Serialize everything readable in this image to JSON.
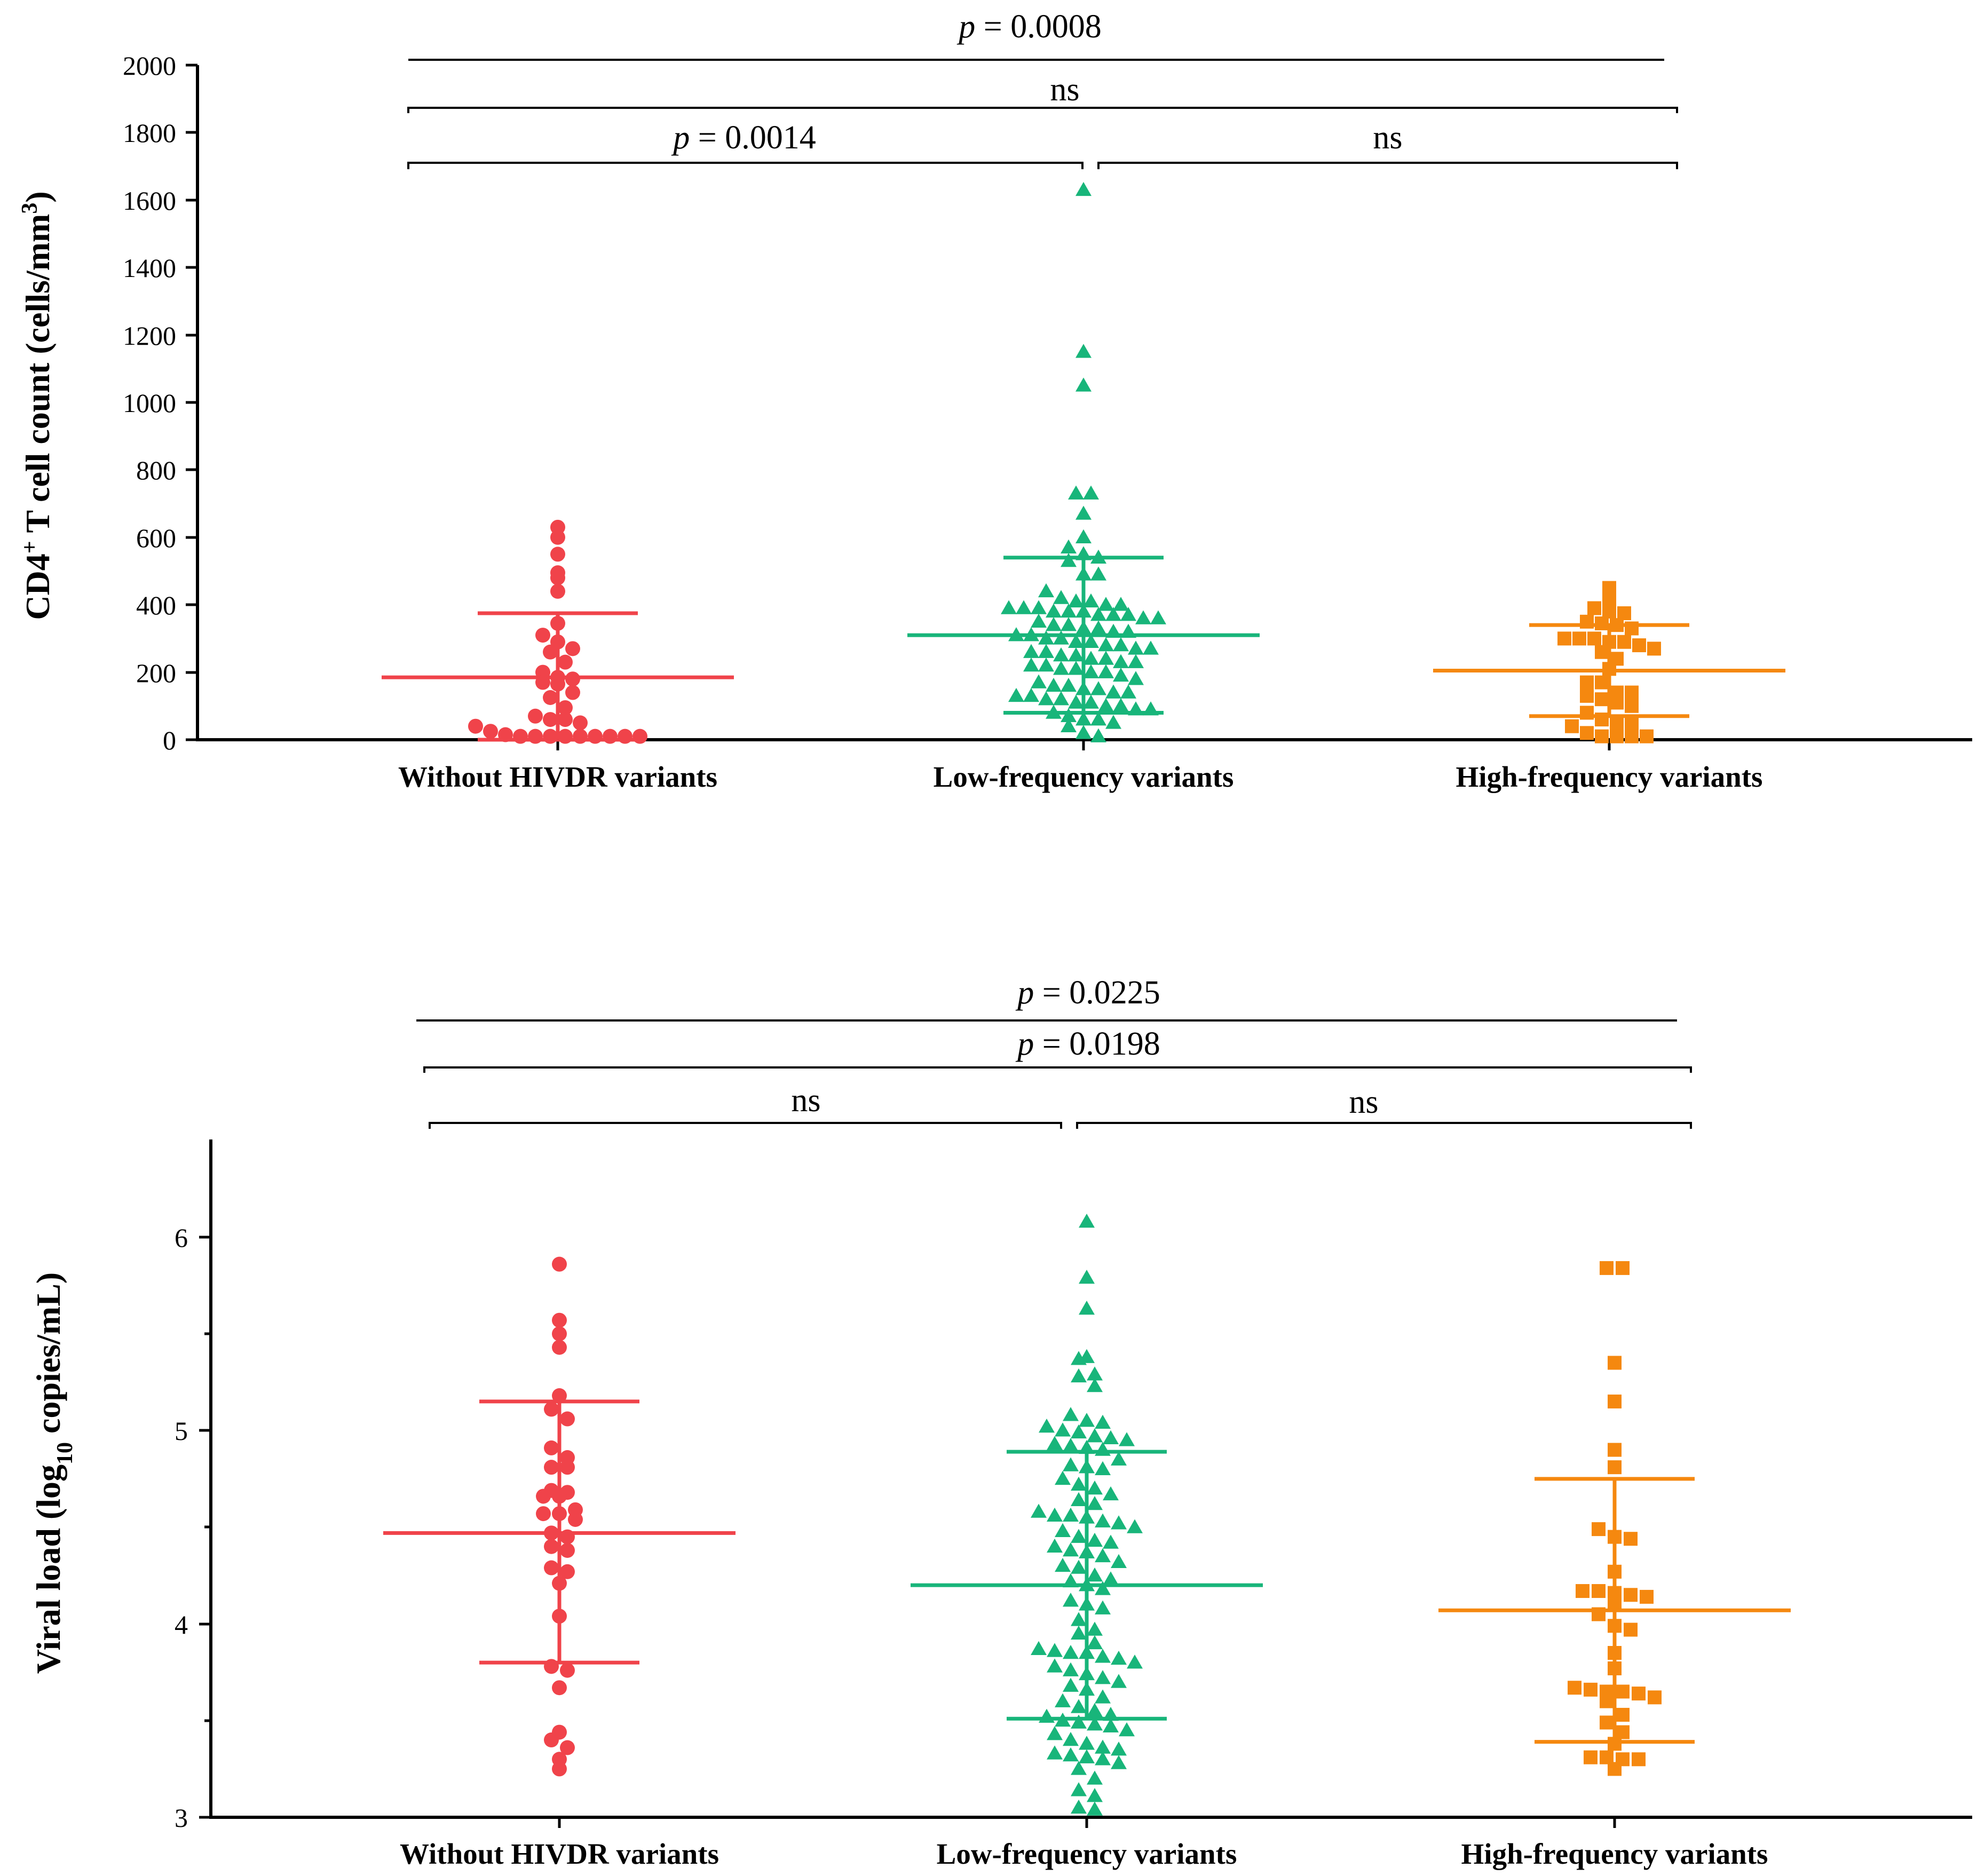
{
  "chart_data": [
    {
      "type": "scatter",
      "subtype": "dot-plot-with-mean-sd",
      "ylabel_main": "CD4",
      "ylabel_sup1": "+",
      "ylabel_mid": " T cell count (cells/mm",
      "ylabel_sup2": "3",
      "ylabel_end": ")",
      "ylim": [
        0,
        2000
      ],
      "yticks": [
        "0",
        "200",
        "400",
        "600",
        "800",
        "1000",
        "1200",
        "1400",
        "1600",
        "1800",
        "2000"
      ],
      "categories": [
        "Without HIVDR variants",
        "Low-frequency variants",
        "High-frequency variants"
      ],
      "series": [
        {
          "color": "#f0434a",
          "marker": "circle",
          "mean": 185,
          "sd_low": 0,
          "sd_high": 375,
          "values": [
            630,
            600,
            550,
            495,
            480,
            440,
            345,
            310,
            290,
            270,
            260,
            230,
            200,
            185,
            180,
            170,
            165,
            140,
            125,
            95,
            70,
            60,
            60,
            50,
            40,
            25,
            15,
            10,
            10,
            10,
            10,
            10,
            10,
            10,
            10,
            10
          ]
        },
        {
          "color": "#18b57a",
          "marker": "triangle",
          "mean": 310,
          "sd_low": 80,
          "sd_high": 540,
          "values": [
            1630,
            1150,
            1050,
            730,
            730,
            670,
            600,
            570,
            550,
            540,
            530,
            490,
            490,
            440,
            420,
            410,
            410,
            400,
            400,
            390,
            390,
            390,
            380,
            380,
            380,
            370,
            370,
            370,
            360,
            360,
            350,
            340,
            340,
            330,
            330,
            320,
            320,
            310,
            310,
            300,
            300,
            290,
            290,
            280,
            280,
            270,
            270,
            260,
            260,
            250,
            250,
            240,
            240,
            230,
            230,
            220,
            220,
            210,
            210,
            200,
            200,
            190,
            180,
            170,
            160,
            160,
            150,
            150,
            140,
            140,
            130,
            130,
            120,
            120,
            110,
            110,
            100,
            100,
            90,
            90,
            80,
            70,
            60,
            60,
            50,
            40,
            20,
            10
          ]
        },
        {
          "color": "#f5880f",
          "marker": "square",
          "mean": 205,
          "sd_low": 70,
          "sd_high": 340,
          "values": [
            450,
            410,
            390,
            380,
            375,
            350,
            345,
            340,
            330,
            300,
            300,
            300,
            290,
            290,
            280,
            270,
            260,
            240,
            210,
            170,
            170,
            140,
            140,
            130,
            120,
            110,
            100,
            80,
            60,
            50,
            50,
            40,
            20,
            10,
            10,
            10,
            10
          ]
        }
      ],
      "annotations": [
        {
          "x1": 0,
          "x2": 2,
          "italic": "p",
          "rest": " = 0.0008"
        },
        {
          "x1": 0,
          "x2": 2,
          "italic": "",
          "rest": "ns"
        },
        {
          "x1": 0,
          "x2": 1,
          "italic": "p",
          "rest": " = 0.0014"
        },
        {
          "x1": 1,
          "x2": 2,
          "italic": "",
          "rest": "ns"
        }
      ]
    },
    {
      "type": "scatter",
      "subtype": "dot-plot-with-mean-sd",
      "ylabel_main": "Viral load (log",
      "ylabel_sub": "10",
      "ylabel_end": " copies/mL)",
      "ylim": [
        3,
        6.5
      ],
      "yticks": [
        "3",
        "4",
        "5",
        "6"
      ],
      "categories": [
        "Without HIVDR variants",
        "Low-frequency variants",
        "High-frequency variants"
      ],
      "series": [
        {
          "color": "#f0434a",
          "marker": "circle",
          "mean": 4.47,
          "sd_low": 3.8,
          "sd_high": 5.15,
          "values": [
            5.86,
            5.57,
            5.5,
            5.43,
            5.18,
            5.11,
            5.06,
            4.91,
            4.86,
            4.81,
            4.81,
            4.69,
            4.68,
            4.66,
            4.66,
            4.59,
            4.57,
            4.57,
            4.54,
            4.47,
            4.45,
            4.4,
            4.38,
            4.29,
            4.27,
            4.21,
            4.04,
            3.78,
            3.76,
            3.67,
            3.44,
            3.4,
            3.36,
            3.3,
            3.25
          ]
        },
        {
          "color": "#18b57a",
          "marker": "triangle",
          "mean": 4.2,
          "sd_low": 3.51,
          "sd_high": 4.89,
          "values": [
            6.08,
            5.79,
            5.63,
            5.38,
            5.37,
            5.29,
            5.28,
            5.23,
            5.08,
            5.05,
            5.04,
            5.02,
            5.0,
            4.99,
            4.97,
            4.96,
            4.95,
            4.93,
            4.92,
            4.91,
            4.9,
            4.85,
            4.82,
            4.81,
            4.8,
            4.75,
            4.72,
            4.7,
            4.67,
            4.64,
            4.62,
            4.58,
            4.56,
            4.56,
            4.55,
            4.53,
            4.52,
            4.5,
            4.48,
            4.45,
            4.43,
            4.42,
            4.4,
            4.38,
            4.37,
            4.35,
            4.32,
            4.3,
            4.29,
            4.25,
            4.23,
            4.22,
            4.2,
            4.18,
            4.12,
            4.1,
            4.08,
            4.02,
            3.97,
            3.95,
            3.9,
            3.87,
            3.86,
            3.85,
            3.85,
            3.83,
            3.82,
            3.8,
            3.78,
            3.76,
            3.74,
            3.72,
            3.7,
            3.68,
            3.66,
            3.62,
            3.6,
            3.57,
            3.55,
            3.53,
            3.52,
            3.5,
            3.49,
            3.48,
            3.47,
            3.45,
            3.43,
            3.4,
            3.38,
            3.36,
            3.35,
            3.33,
            3.32,
            3.31,
            3.3,
            3.28,
            3.25,
            3.2,
            3.14,
            3.11,
            3.05,
            3.04
          ]
        },
        {
          "color": "#f5880f",
          "marker": "square",
          "mean": 4.07,
          "sd_low": 3.39,
          "sd_high": 4.75,
          "values": [
            5.84,
            5.84,
            5.35,
            5.15,
            4.9,
            4.81,
            4.49,
            4.45,
            4.44,
            4.27,
            4.17,
            4.17,
            4.16,
            4.15,
            4.14,
            4.11,
            4.05,
            3.99,
            3.97,
            3.85,
            3.77,
            3.67,
            3.66,
            3.65,
            3.65,
            3.64,
            3.62,
            3.6,
            3.53,
            3.49,
            3.44,
            3.38,
            3.31,
            3.31,
            3.3,
            3.3,
            3.25
          ]
        }
      ],
      "annotations": [
        {
          "x1": 0,
          "x2": 2,
          "italic": "p",
          "rest": " = 0.0225"
        },
        {
          "x1": 0,
          "x2": 2,
          "italic": "p",
          "rest": " = 0.0198"
        },
        {
          "x1": 0,
          "x2": 1,
          "italic": "",
          "rest": "ns"
        },
        {
          "x1": 1,
          "x2": 2,
          "italic": "",
          "rest": "ns"
        }
      ]
    }
  ]
}
